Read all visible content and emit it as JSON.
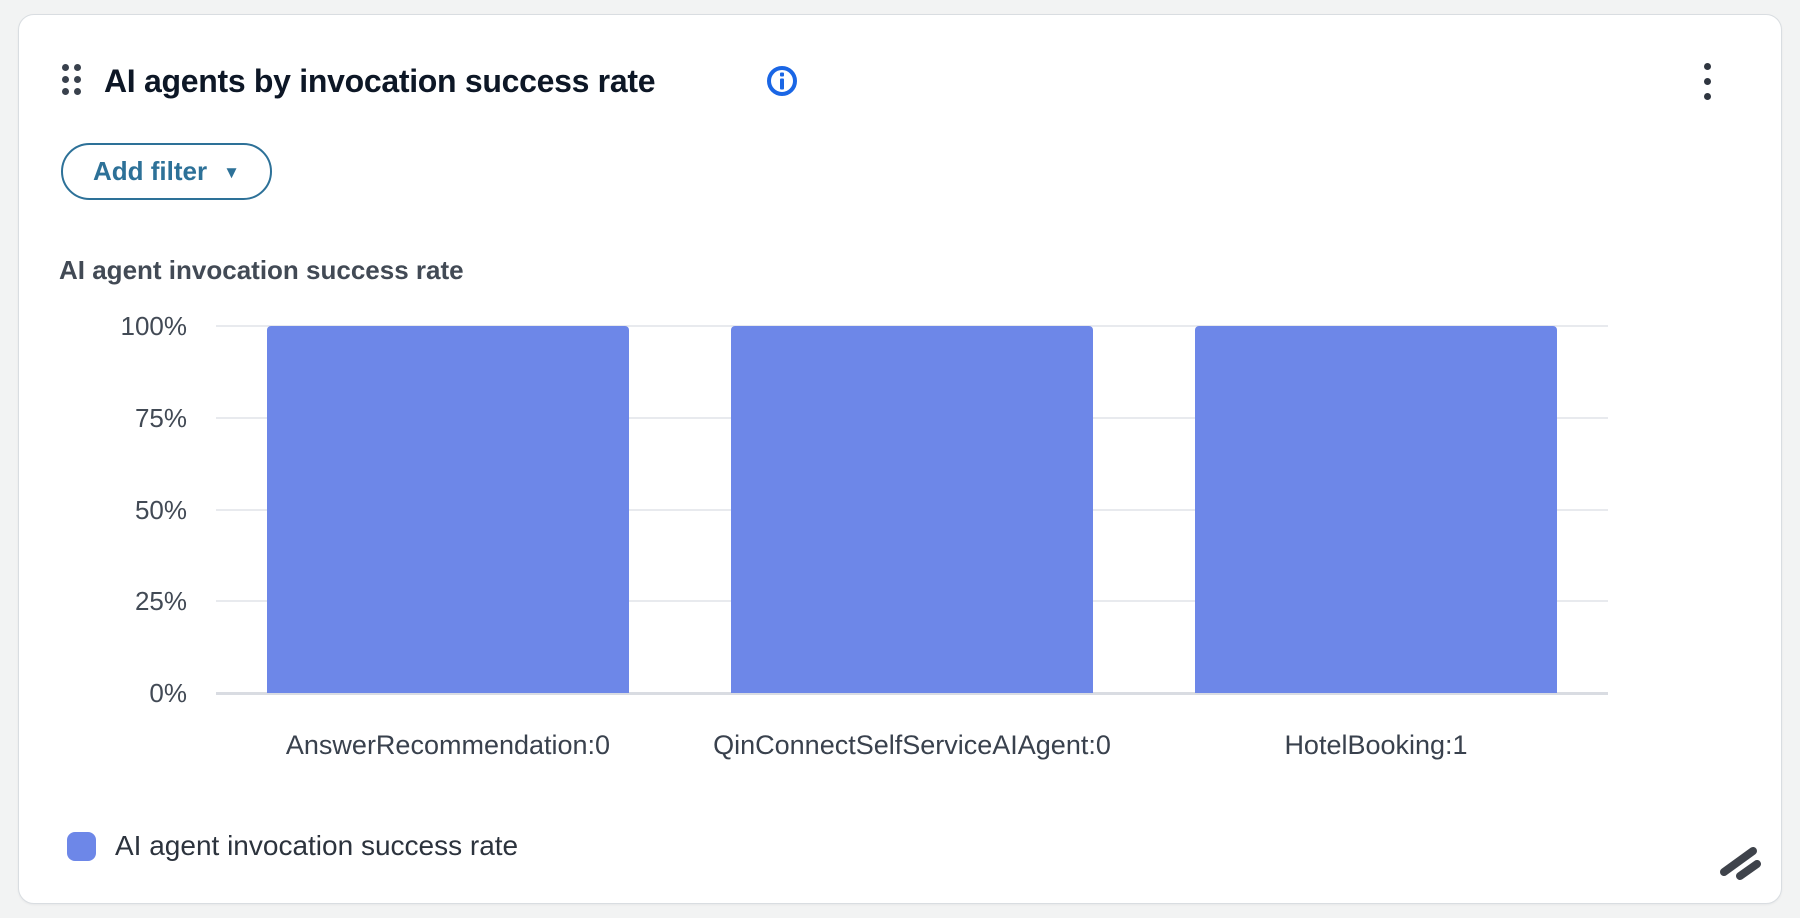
{
  "card": {
    "title": "AI agents by invocation success rate"
  },
  "icons": {
    "drag_handle": "drag-handle-icon",
    "info": "info-icon",
    "kebab": "kebab-menu-icon",
    "caret_down": "▼",
    "resize": "resize-grip-icon"
  },
  "filter": {
    "label": "Add filter"
  },
  "chart_heading": "AI agent invocation success rate",
  "legend": {
    "label": "AI agent invocation success rate"
  },
  "colors": {
    "bar": "#6d87e8",
    "accent_blue": "#1a66e5",
    "filter_teal": "#2d7198",
    "gridline": "#e8eaee",
    "baseline": "#d9dce2"
  },
  "chart_data": {
    "type": "bar",
    "title": "AI agent invocation success rate",
    "categories": [
      "AnswerRecommendation:0",
      "QinConnectSelfServiceAIAgent:0",
      "HotelBooking:1"
    ],
    "series": [
      {
        "name": "AI agent invocation success rate",
        "values": [
          100,
          100,
          100
        ],
        "color": "#6d87e8"
      }
    ],
    "xlabel": "",
    "ylabel": "",
    "ylim": [
      0,
      100
    ],
    "ytick_values": [
      0,
      25,
      50,
      75,
      100
    ],
    "ytick_labels": [
      "0%",
      "25%",
      "50%",
      "75%",
      "100%"
    ],
    "grid": true,
    "legend_position": "bottom-left"
  }
}
